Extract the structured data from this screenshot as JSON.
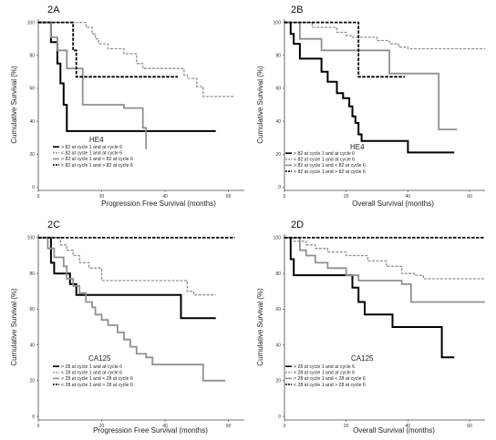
{
  "chart_data": [
    {
      "type": "line",
      "panel_label": "2A",
      "marker_label": "HE4",
      "xlabel": "Progression Free Survival (months)",
      "ylabel": "Cumulative Survival (%)",
      "xlim": [
        0,
        65
      ],
      "ylim": [
        -2,
        102
      ],
      "xticks": [
        0,
        20,
        40,
        60
      ],
      "yticks": [
        0,
        20,
        40,
        60,
        80,
        100
      ],
      "grid": false,
      "legend_position": "bottom-left",
      "series": [
        {
          "name": "> 82 at cycle 1 and at cycle 6",
          "color": "#000000",
          "style": "solid",
          "width": 2,
          "x": [
            0,
            4,
            6,
            7,
            8,
            9,
            10,
            56
          ],
          "y": [
            100,
            88,
            75,
            63,
            50,
            34,
            34,
            34
          ]
        },
        {
          "name": "< 82 at cycle 1 and at cycle 6",
          "color": "#909090",
          "style": "dashed",
          "width": 1.3,
          "x": [
            0,
            13,
            15,
            17,
            18,
            19,
            22,
            27,
            31,
            33,
            46,
            47,
            50,
            52,
            62
          ],
          "y": [
            100,
            100,
            97,
            93,
            90,
            87,
            84,
            81,
            75,
            72,
            68,
            66,
            61,
            55,
            55
          ]
        },
        {
          "name": "> 82 at cycle 1 and < 82 at cycle 6",
          "color": "#909090",
          "style": "solid",
          "width": 1.8,
          "x": [
            0,
            4,
            6,
            9,
            12,
            14,
            24,
            27,
            33,
            34
          ],
          "y": [
            100,
            91,
            83,
            72,
            72,
            50,
            50,
            48,
            36,
            23
          ]
        },
        {
          "name": "< 82 at cycle 1 and > 82 at cycle 6",
          "color": "#000000",
          "style": "dashed",
          "width": 1.8,
          "x": [
            0,
            10,
            11,
            12,
            44
          ],
          "y": [
            100,
            100,
            83,
            67,
            67
          ]
        }
      ]
    },
    {
      "type": "line",
      "panel_label": "2B",
      "marker_label": "HE4",
      "xlabel": "Overall Survival (months)",
      "ylabel": "Cumulative Survival (%)",
      "xlim": [
        0,
        65
      ],
      "ylim": [
        -2,
        102
      ],
      "xticks": [
        0,
        20,
        40,
        60
      ],
      "yticks": [
        0,
        20,
        40,
        60,
        80,
        100
      ],
      "grid": false,
      "legend_position": "bottom-left",
      "series": [
        {
          "name": "> 82 at cycle 1 and at cycle 6",
          "color": "#000000",
          "style": "solid",
          "width": 2,
          "x": [
            0,
            2,
            3,
            5,
            9,
            12,
            14,
            17,
            19,
            21,
            22,
            23,
            24,
            25,
            30,
            37,
            40,
            55
          ],
          "y": [
            100,
            93,
            87,
            78,
            78,
            70,
            64,
            57,
            54,
            49,
            43,
            39,
            32,
            28,
            28,
            28,
            21,
            21
          ]
        },
        {
          "name": "< 82 at cycle 1 and at cycle 6",
          "color": "#909090",
          "style": "dashed",
          "width": 1.3,
          "x": [
            0,
            9,
            17,
            20,
            22,
            30,
            34,
            37,
            40,
            65
          ],
          "y": [
            100,
            97,
            94,
            92,
            91,
            89,
            87,
            85,
            84,
            84
          ]
        },
        {
          "name": "> 82 at cycle 1 and < 82 at cycle 6",
          "color": "#909090",
          "style": "solid",
          "width": 1.8,
          "x": [
            0,
            5,
            12,
            22,
            34,
            36,
            50,
            53,
            56
          ],
          "y": [
            100,
            90,
            83,
            83,
            69,
            69,
            35,
            35,
            35
          ]
        },
        {
          "name": "< 82 at cycle 1 and > 82 at cycle 6",
          "color": "#000000",
          "style": "dashed",
          "width": 1.8,
          "x": [
            0,
            22,
            24,
            39
          ],
          "y": [
            100,
            100,
            67,
            67
          ]
        }
      ]
    },
    {
      "type": "line",
      "panel_label": "2C",
      "marker_label": "CA125",
      "xlabel": "Progression Free Survival (months)",
      "ylabel": "Cumulative Survival (%)",
      "xlim": [
        0,
        65
      ],
      "ylim": [
        -2,
        102
      ],
      "xticks": [
        0,
        20,
        40,
        60
      ],
      "yticks": [
        0,
        20,
        40,
        60,
        80,
        100
      ],
      "grid": false,
      "legend_position": "bottom-left",
      "series": [
        {
          "name": "> 28 at cycle 1 and at cycle 6",
          "color": "#000000",
          "style": "solid",
          "width": 2,
          "x": [
            0,
            4,
            5,
            9,
            10,
            12,
            14,
            35,
            45,
            56
          ],
          "y": [
            100,
            86,
            80,
            80,
            74,
            68,
            68,
            68,
            55,
            55
          ]
        },
        {
          "name": "< 28 at cycle 1 and at cycle 6",
          "color": "#909090",
          "style": "dashed",
          "width": 1.3,
          "x": [
            0,
            7,
            9,
            11,
            13,
            16,
            20,
            25,
            35,
            47,
            49,
            56
          ],
          "y": [
            100,
            96,
            93,
            90,
            86,
            83,
            76,
            76,
            76,
            70,
            68,
            68
          ]
        },
        {
          "name": "> 28 at cycle 1 and < 28 at cycle 6",
          "color": "#909090",
          "style": "solid",
          "width": 1.8,
          "x": [
            0,
            3,
            5,
            8,
            9,
            11,
            13,
            15,
            17,
            18,
            20,
            22,
            25,
            27,
            29,
            31,
            34,
            36,
            40,
            51,
            52,
            59
          ],
          "y": [
            100,
            94,
            89,
            84,
            77,
            73,
            69,
            64,
            61,
            57,
            54,
            51,
            47,
            43,
            39,
            35,
            33,
            29,
            29,
            29,
            20,
            20
          ]
        },
        {
          "name": "< 28 at cycle 1 and > 28 at cycle 6",
          "color": "#000000",
          "style": "dashed",
          "width": 1.8,
          "x": [
            0,
            62
          ],
          "y": [
            100,
            100
          ]
        }
      ]
    },
    {
      "type": "line",
      "panel_label": "2D",
      "marker_label": "CA125",
      "xlabel": "Overall Survival (months)",
      "ylabel": "Cumulative Survival (%)",
      "xlim": [
        0,
        65
      ],
      "ylim": [
        -2,
        102
      ],
      "xticks": [
        0,
        20,
        40,
        60
      ],
      "yticks": [
        0,
        20,
        40,
        60,
        80,
        100
      ],
      "grid": false,
      "legend_position": "bottom-left",
      "series": [
        {
          "name": "> 28 at cycle 1 and at cycle 6",
          "color": "#000000",
          "style": "solid",
          "width": 2,
          "x": [
            0,
            2,
            3,
            15,
            22,
            24,
            26,
            30,
            35,
            40,
            51,
            55
          ],
          "y": [
            100,
            88,
            79,
            79,
            72,
            64,
            57,
            57,
            50,
            50,
            33,
            33
          ]
        },
        {
          "name": "< 28 at cycle 1 and at cycle 6",
          "color": "#909090",
          "style": "dashed",
          "width": 1.3,
          "x": [
            0,
            3,
            7,
            10,
            14,
            20,
            27,
            33,
            38,
            42,
            45,
            65
          ],
          "y": [
            100,
            98,
            96,
            94,
            92,
            90,
            87,
            84,
            80,
            79,
            77,
            77
          ]
        },
        {
          "name": "> 28 at cycle 1 and < 28 at cycle 6",
          "color": "#909090",
          "style": "solid",
          "width": 1.8,
          "x": [
            0,
            5,
            7,
            10,
            14,
            20,
            24,
            28,
            38,
            41,
            52,
            65
          ],
          "y": [
            100,
            93,
            90,
            86,
            83,
            79,
            76,
            76,
            74,
            64,
            64,
            64
          ]
        },
        {
          "name": "< 28 at cycle 1 and > 28 at cycle 6",
          "color": "#000000",
          "style": "dashed",
          "width": 1.8,
          "x": [
            0,
            65
          ],
          "y": [
            100,
            100
          ]
        }
      ]
    }
  ]
}
